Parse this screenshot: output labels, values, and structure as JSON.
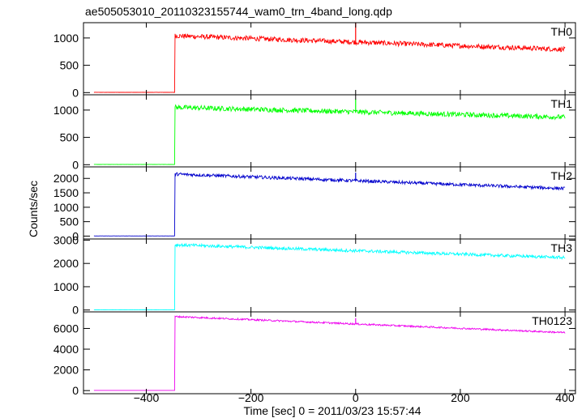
{
  "title": "ae505053010_20110323155744_wam0_trn_4band_long.qdp",
  "chart_data": {
    "type": "line",
    "title": "ae505053010_20110323155744_wam0_trn_4band_long.qdp",
    "xlabel": "Time [sec] 0 = 2011/03/23 15:57:44",
    "ylabel": "Counts/sec",
    "xlim": [
      -520,
      420
    ],
    "xticks": [
      -400,
      -200,
      0,
      200,
      400
    ],
    "xtick_labels": [
      "−400",
      "−200",
      "0",
      "200",
      "400"
    ],
    "grid": false,
    "panels": [
      {
        "name": "TH0",
        "color": "#ff0000",
        "ylim": [
          -40,
          1280
        ],
        "yticks": [
          0,
          500,
          1000
        ],
        "ytick_labels": [
          "0",
          "500",
          "1000"
        ],
        "x_start": -500,
        "x_rise": -345,
        "x_end": 400,
        "pre_level": 5,
        "post_start": 1040,
        "post_end": 790,
        "noise": 45,
        "spike_x": 0,
        "spike_top": 1270
      },
      {
        "name": "TH1",
        "color": "#00ff00",
        "ylim": [
          -40,
          1280
        ],
        "yticks": [
          0,
          500,
          1000
        ],
        "ytick_labels": [
          "0",
          "500",
          "1000"
        ],
        "x_start": -500,
        "x_rise": -345,
        "x_end": 400,
        "pre_level": 5,
        "post_start": 1050,
        "post_end": 870,
        "noise": 45,
        "spike_x": 0,
        "spike_top": 1200
      },
      {
        "name": "TH2",
        "color": "#0000cc",
        "ylim": [
          -100,
          2400
        ],
        "yticks": [
          0,
          500,
          1000,
          1500,
          2000
        ],
        "ytick_labels": [
          "0",
          "500",
          "1000",
          "1500",
          "2000"
        ],
        "x_start": -500,
        "x_rise": -345,
        "x_end": 400,
        "pre_level": 5,
        "post_start": 2150,
        "post_end": 1650,
        "noise": 55,
        "spike_x": 0,
        "spike_top": 2200
      },
      {
        "name": "TH3",
        "color": "#00ffff",
        "ylim": [
          -80,
          3050
        ],
        "yticks": [
          0,
          1000,
          2000,
          3000
        ],
        "ytick_labels": [
          "0",
          "1000",
          "2000",
          "3000"
        ],
        "x_start": -500,
        "x_rise": -345,
        "x_end": 400,
        "pre_level": 5,
        "post_start": 2800,
        "post_end": 2250,
        "noise": 65,
        "spike_x": 0,
        "spike_top": 2600
      },
      {
        "name": "TH0123",
        "color": "#ee00ee",
        "ylim": [
          -300,
          7600
        ],
        "yticks": [
          0,
          2000,
          4000,
          6000
        ],
        "ytick_labels": [
          "0",
          "2000",
          "4000",
          "6000"
        ],
        "x_start": -500,
        "x_rise": -345,
        "x_end": 400,
        "pre_level": 20,
        "post_start": 7150,
        "post_end": 5600,
        "noise": 80,
        "spike_x": 0,
        "spike_top": 7000
      }
    ]
  }
}
